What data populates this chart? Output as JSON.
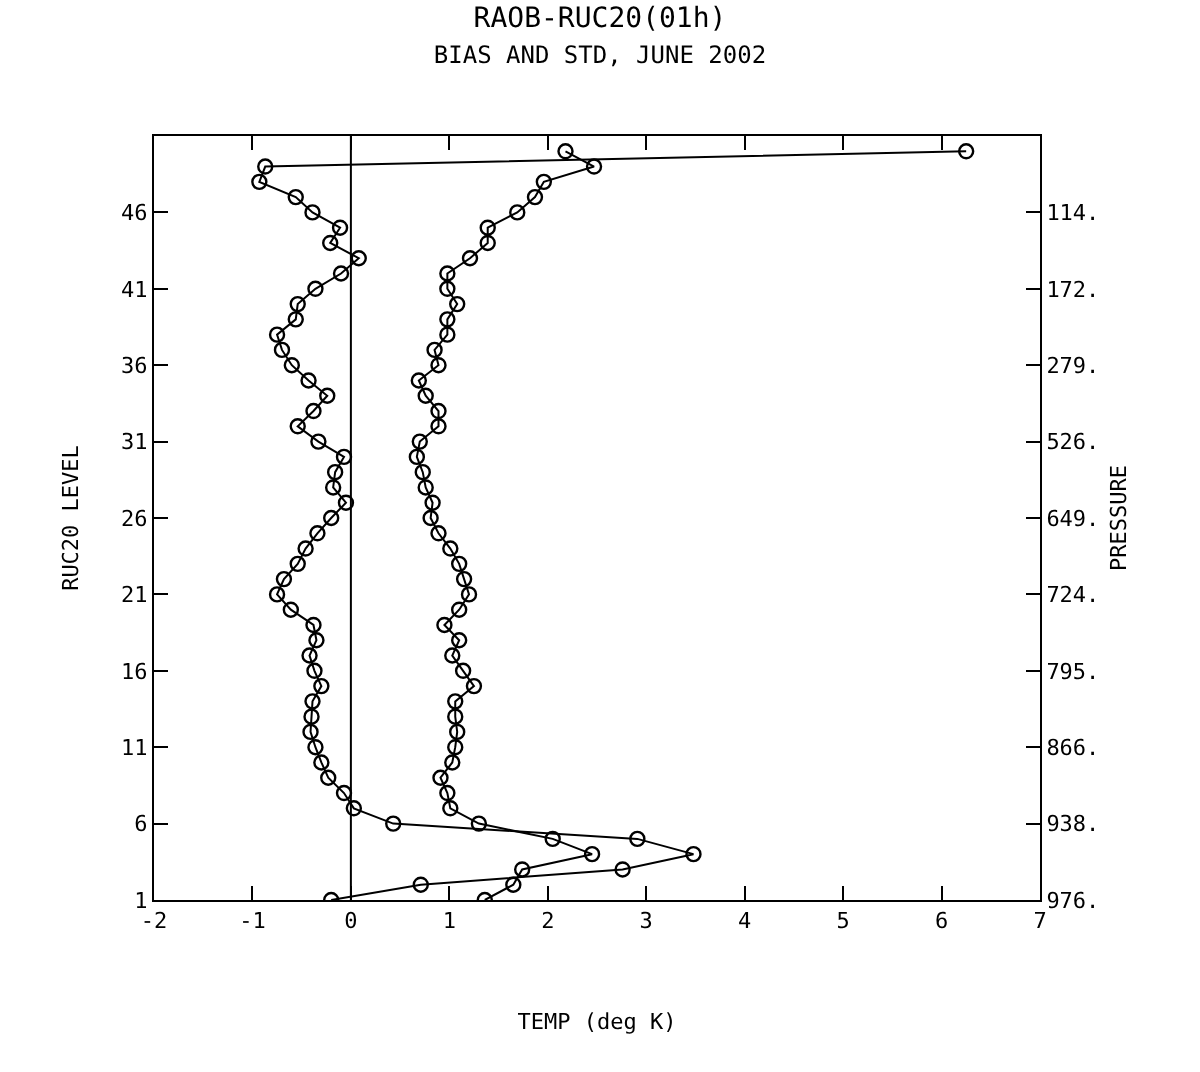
{
  "chart_data": {
    "type": "line",
    "title": "RAOB-RUC20(01h)",
    "subtitle": "BIAS AND STD, JUNE 2002",
    "xlabel": "TEMP (deg K)",
    "ylabel": "RUC20 LEVEL",
    "y2label": "PRESSURE",
    "orientation": "horizontal",
    "marker": "circle",
    "line_style": "solid",
    "legend": false,
    "x": [
      1,
      2,
      3,
      4,
      5,
      6,
      7,
      8,
      9,
      10,
      11,
      12,
      13,
      14,
      15,
      16,
      17,
      18,
      19,
      20,
      21,
      22,
      23,
      24,
      25,
      26,
      27,
      28,
      29,
      30,
      31,
      32,
      33,
      34,
      35,
      36,
      37,
      38,
      39,
      40,
      41,
      42,
      43,
      44,
      45,
      46,
      47,
      48,
      49,
      50
    ],
    "series": [
      {
        "color": "#000000",
        "values": [
          -0.2,
          0.71,
          2.76,
          3.48,
          2.91,
          0.43,
          0.03,
          -0.07,
          -0.23,
          -0.3,
          -0.36,
          -0.41,
          -0.4,
          -0.39,
          -0.3,
          -0.37,
          -0.42,
          -0.35,
          -0.38,
          -0.61,
          -0.75,
          -0.68,
          -0.54,
          -0.46,
          -0.34,
          -0.2,
          -0.05,
          -0.18,
          -0.16,
          -0.07,
          -0.33,
          -0.54,
          -0.38,
          -0.24,
          -0.43,
          -0.6,
          -0.7,
          -0.75,
          -0.56,
          -0.54,
          -0.36,
          -0.1,
          0.08,
          -0.21,
          -0.11,
          -0.39,
          -0.56,
          -0.93,
          -0.87,
          6.25
        ]
      },
      {
        "color": "#000000",
        "values": [
          1.36,
          1.65,
          1.74,
          2.45,
          2.05,
          1.3,
          1.01,
          0.98,
          0.91,
          1.03,
          1.06,
          1.08,
          1.06,
          1.06,
          1.25,
          1.14,
          1.03,
          1.1,
          0.95,
          1.1,
          1.2,
          1.15,
          1.1,
          1.01,
          0.89,
          0.81,
          0.83,
          0.76,
          0.73,
          0.67,
          0.7,
          0.89,
          0.89,
          0.76,
          0.69,
          0.89,
          0.85,
          0.98,
          0.98,
          1.08,
          0.98,
          0.98,
          1.21,
          1.39,
          1.39,
          1.69,
          1.87,
          1.96,
          2.47,
          2.18
        ]
      }
    ],
    "xlim": [
      -2,
      7
    ],
    "xticks": [
      -2,
      -1,
      0,
      1,
      2,
      3,
      4,
      5,
      6,
      7
    ],
    "ylim": [
      1,
      51
    ],
    "yticks": [
      1,
      6,
      11,
      16,
      21,
      26,
      31,
      36,
      41,
      46
    ],
    "y2_categories": [
      null,
      "114.",
      "172.",
      "279.",
      "526.",
      "649.",
      "724.",
      "795.",
      "866.",
      "938.",
      "976."
    ],
    "ref_lines": [
      {
        "axis": "x",
        "value": 0,
        "color": "#000000"
      }
    ]
  }
}
